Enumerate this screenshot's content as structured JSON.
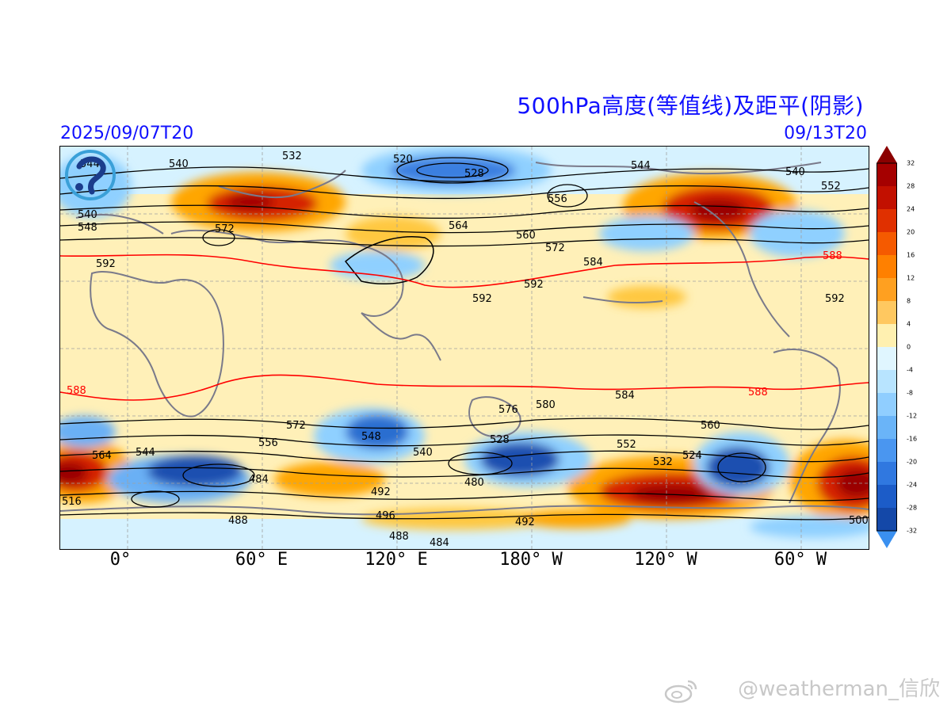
{
  "header": {
    "title": "500hPa高度(等值线)及距平(阴影)",
    "date_left": "2025/09/07T20",
    "date_right": "09/13T20"
  },
  "map": {
    "lon_labels": [
      "0°",
      "60° E",
      "120° E",
      "180° W",
      "120° W",
      "60° W"
    ],
    "contour_labels": [
      "544",
      "540",
      "532",
      "520",
      "528",
      "544",
      "540",
      "552",
      "556",
      "540",
      "548",
      "572",
      "592",
      "564",
      "560",
      "572",
      "584",
      "588",
      "592",
      "592",
      "588",
      "588",
      "584",
      "580",
      "576",
      "572",
      "556",
      "548",
      "540",
      "544",
      "552",
      "528",
      "532",
      "524",
      "484",
      "480",
      "492",
      "496",
      "488",
      "484",
      "492",
      "488",
      "500",
      "516",
      "560",
      "564",
      "592"
    ],
    "colors": {
      "positive_strong": "#b00000",
      "positive": "#ff9a00",
      "positive_light": "#ffe9a8",
      "negative_light": "#d8f3ff",
      "negative": "#5aa0ee",
      "negative_strong": "#0a2d7a",
      "contour": "#000000",
      "contour_588": "#ff0000",
      "coastline": "#808080"
    }
  },
  "colorbar": {
    "ticks": [
      "32",
      "28",
      "24",
      "20",
      "16",
      "12",
      "8",
      "4",
      "0",
      "-4",
      "-8",
      "-12",
      "-16",
      "-20",
      "-24",
      "-28",
      "-32"
    ]
  },
  "watermark": {
    "text": "@weatherman_信欣",
    "icon": "weibo-icon"
  },
  "logo": {
    "icon": "agency-logo-icon"
  }
}
